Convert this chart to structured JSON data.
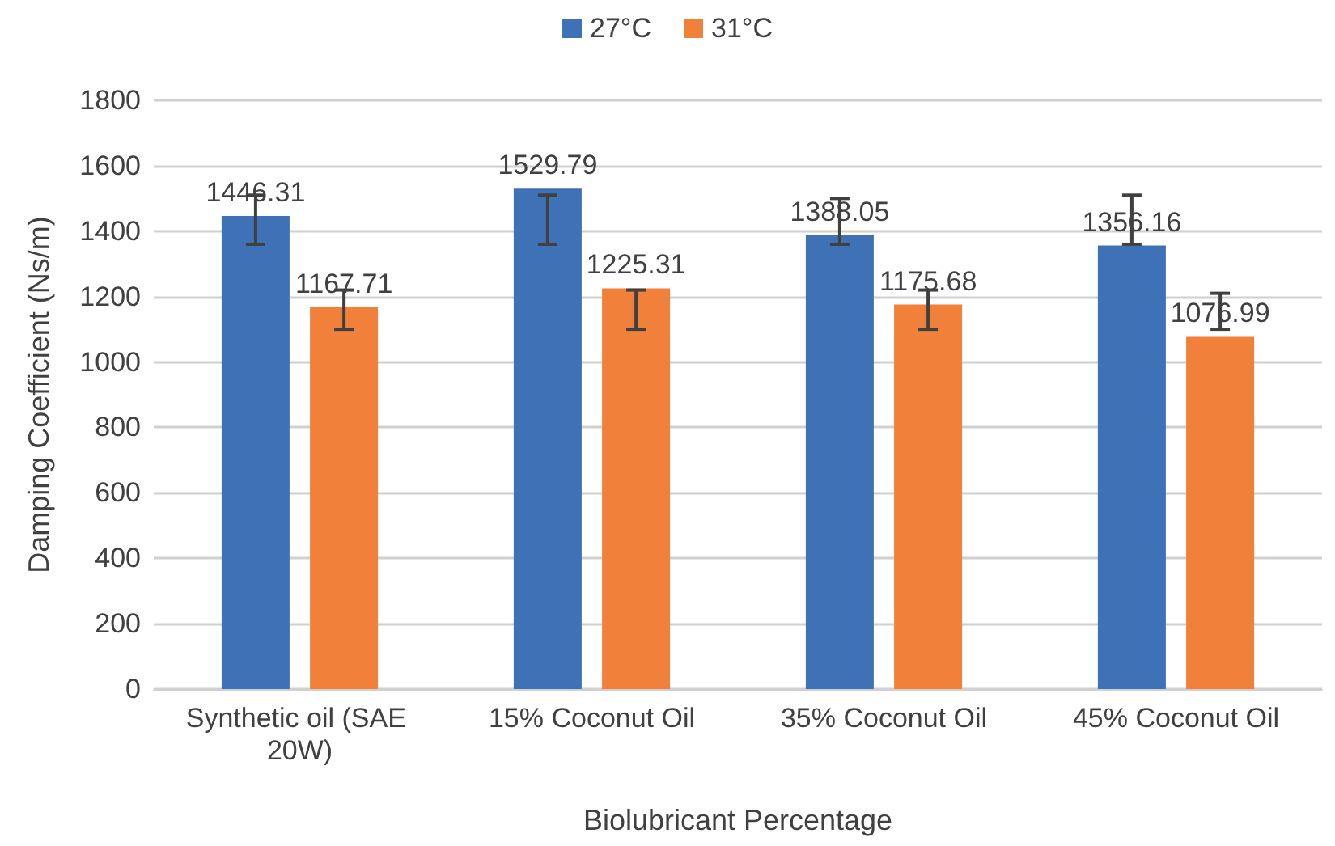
{
  "chart_data": {
    "type": "bar",
    "xlabel": "Biolubricant Percentage",
    "ylabel": "Damping Coefficient (Ns/m)",
    "categories": [
      "Synthetic oil (SAE 20W)",
      "15% Coconut Oil",
      "35% Coconut Oil",
      "45% Coconut Oil"
    ],
    "series": [
      {
        "name": "27°C",
        "color": "#3f71b7",
        "values": [
          1446.31,
          1529.79,
          1388.05,
          1356.16
        ],
        "errors": [
          [
            1360,
            1510
          ],
          [
            1360,
            1510
          ],
          [
            1360,
            1500
          ],
          [
            1360,
            1510
          ]
        ]
      },
      {
        "name": "31°C",
        "color": "#f1803a",
        "values": [
          1167.71,
          1225.31,
          1175.68,
          1076.99
        ],
        "errors": [
          [
            1100,
            1220
          ],
          [
            1100,
            1220
          ],
          [
            1100,
            1220
          ],
          [
            1100,
            1210
          ]
        ]
      }
    ],
    "data_labels": true,
    "ylim": [
      0,
      1800
    ],
    "yticks": [
      0,
      200,
      400,
      600,
      800,
      1000,
      1200,
      1400,
      1600,
      1800
    ],
    "grid": "y",
    "legend": "top"
  }
}
